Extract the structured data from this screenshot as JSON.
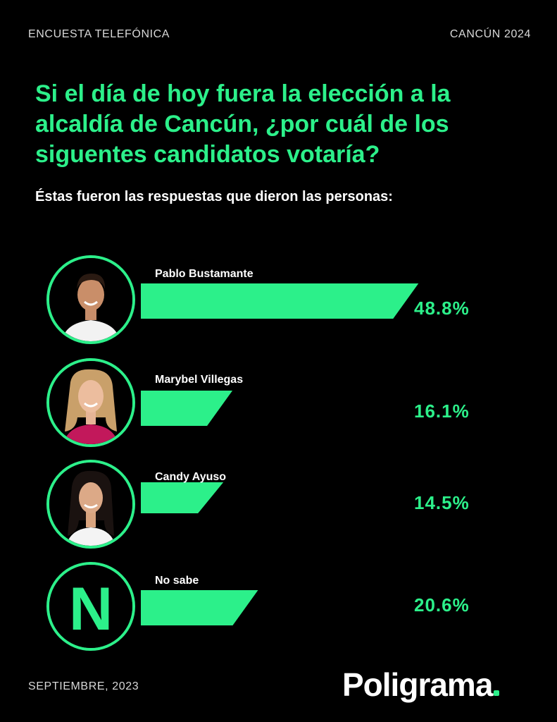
{
  "header": {
    "left": "ENCUESTA TELEFÓNICA",
    "right": "CANCÚN 2024"
  },
  "question": "Si el día de hoy fuera la elección a la alcaldía de Cancún, ¿por cuál de los siguentes candidatos votaría?",
  "subtitle": "Éstas fueron las respuestas que dieron las personas:",
  "footer": {
    "date": "SEPTIEMBRE, 2023",
    "brand": "Poligrama"
  },
  "colors": {
    "accent": "#2cf08a",
    "background": "#000000",
    "text": "#ffffff"
  },
  "candidates": [
    {
      "name": "Pablo Bustamante",
      "value_label": "48.8%",
      "icon": "man-portrait-icon"
    },
    {
      "name": "Marybel Villegas",
      "value_label": "16.1%",
      "icon": "woman-portrait-icon"
    },
    {
      "name": "Candy Ayuso",
      "value_label": "14.5%",
      "icon": "woman-portrait-icon"
    },
    {
      "name": "No sabe",
      "value_label": "20.6%",
      "icon_letter": "N"
    }
  ],
  "chart_data": {
    "type": "bar",
    "orientation": "horizontal",
    "categories": [
      "Pablo Bustamante",
      "Marybel Villegas",
      "Candy Ayuso",
      "No sabe"
    ],
    "values": [
      48.8,
      16.1,
      14.5,
      20.6
    ],
    "unit": "%",
    "title": "Si el día de hoy fuera la elección a la alcaldía de Cancún, ¿por cuál de los siguentes candidatos votaría?",
    "subtitle": "Éstas fueron las respuestas que dieron las personas:",
    "xlabel": "",
    "ylabel": "",
    "grid": false,
    "legend": "none"
  }
}
